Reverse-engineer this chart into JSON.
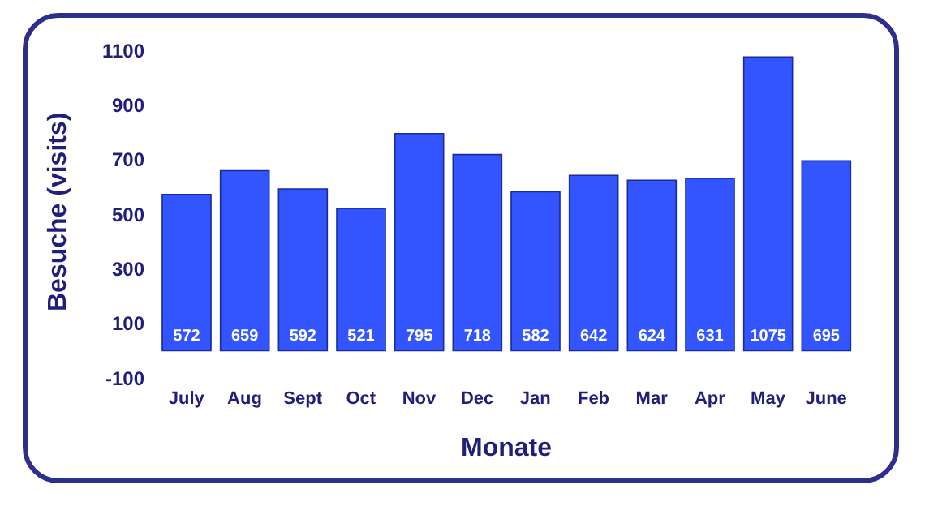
{
  "chart_data": {
    "type": "bar",
    "xlabel": "Monate",
    "ylabel": "Besuche (visits)",
    "categories": [
      "July",
      "Aug",
      "Sept",
      "Oct",
      "Nov",
      "Dec",
      "Jan",
      "Feb",
      "Mar",
      "Apr",
      "May",
      "June"
    ],
    "values": [
      572,
      659,
      592,
      521,
      795,
      718,
      582,
      642,
      624,
      631,
      1075,
      695
    ],
    "color": "#3355ff",
    "ylim": [
      -100,
      1100
    ],
    "yticks": [
      -100,
      100,
      300,
      500,
      700,
      900,
      1100
    ],
    "data_labels": true,
    "grid": false,
    "legend": false
  }
}
